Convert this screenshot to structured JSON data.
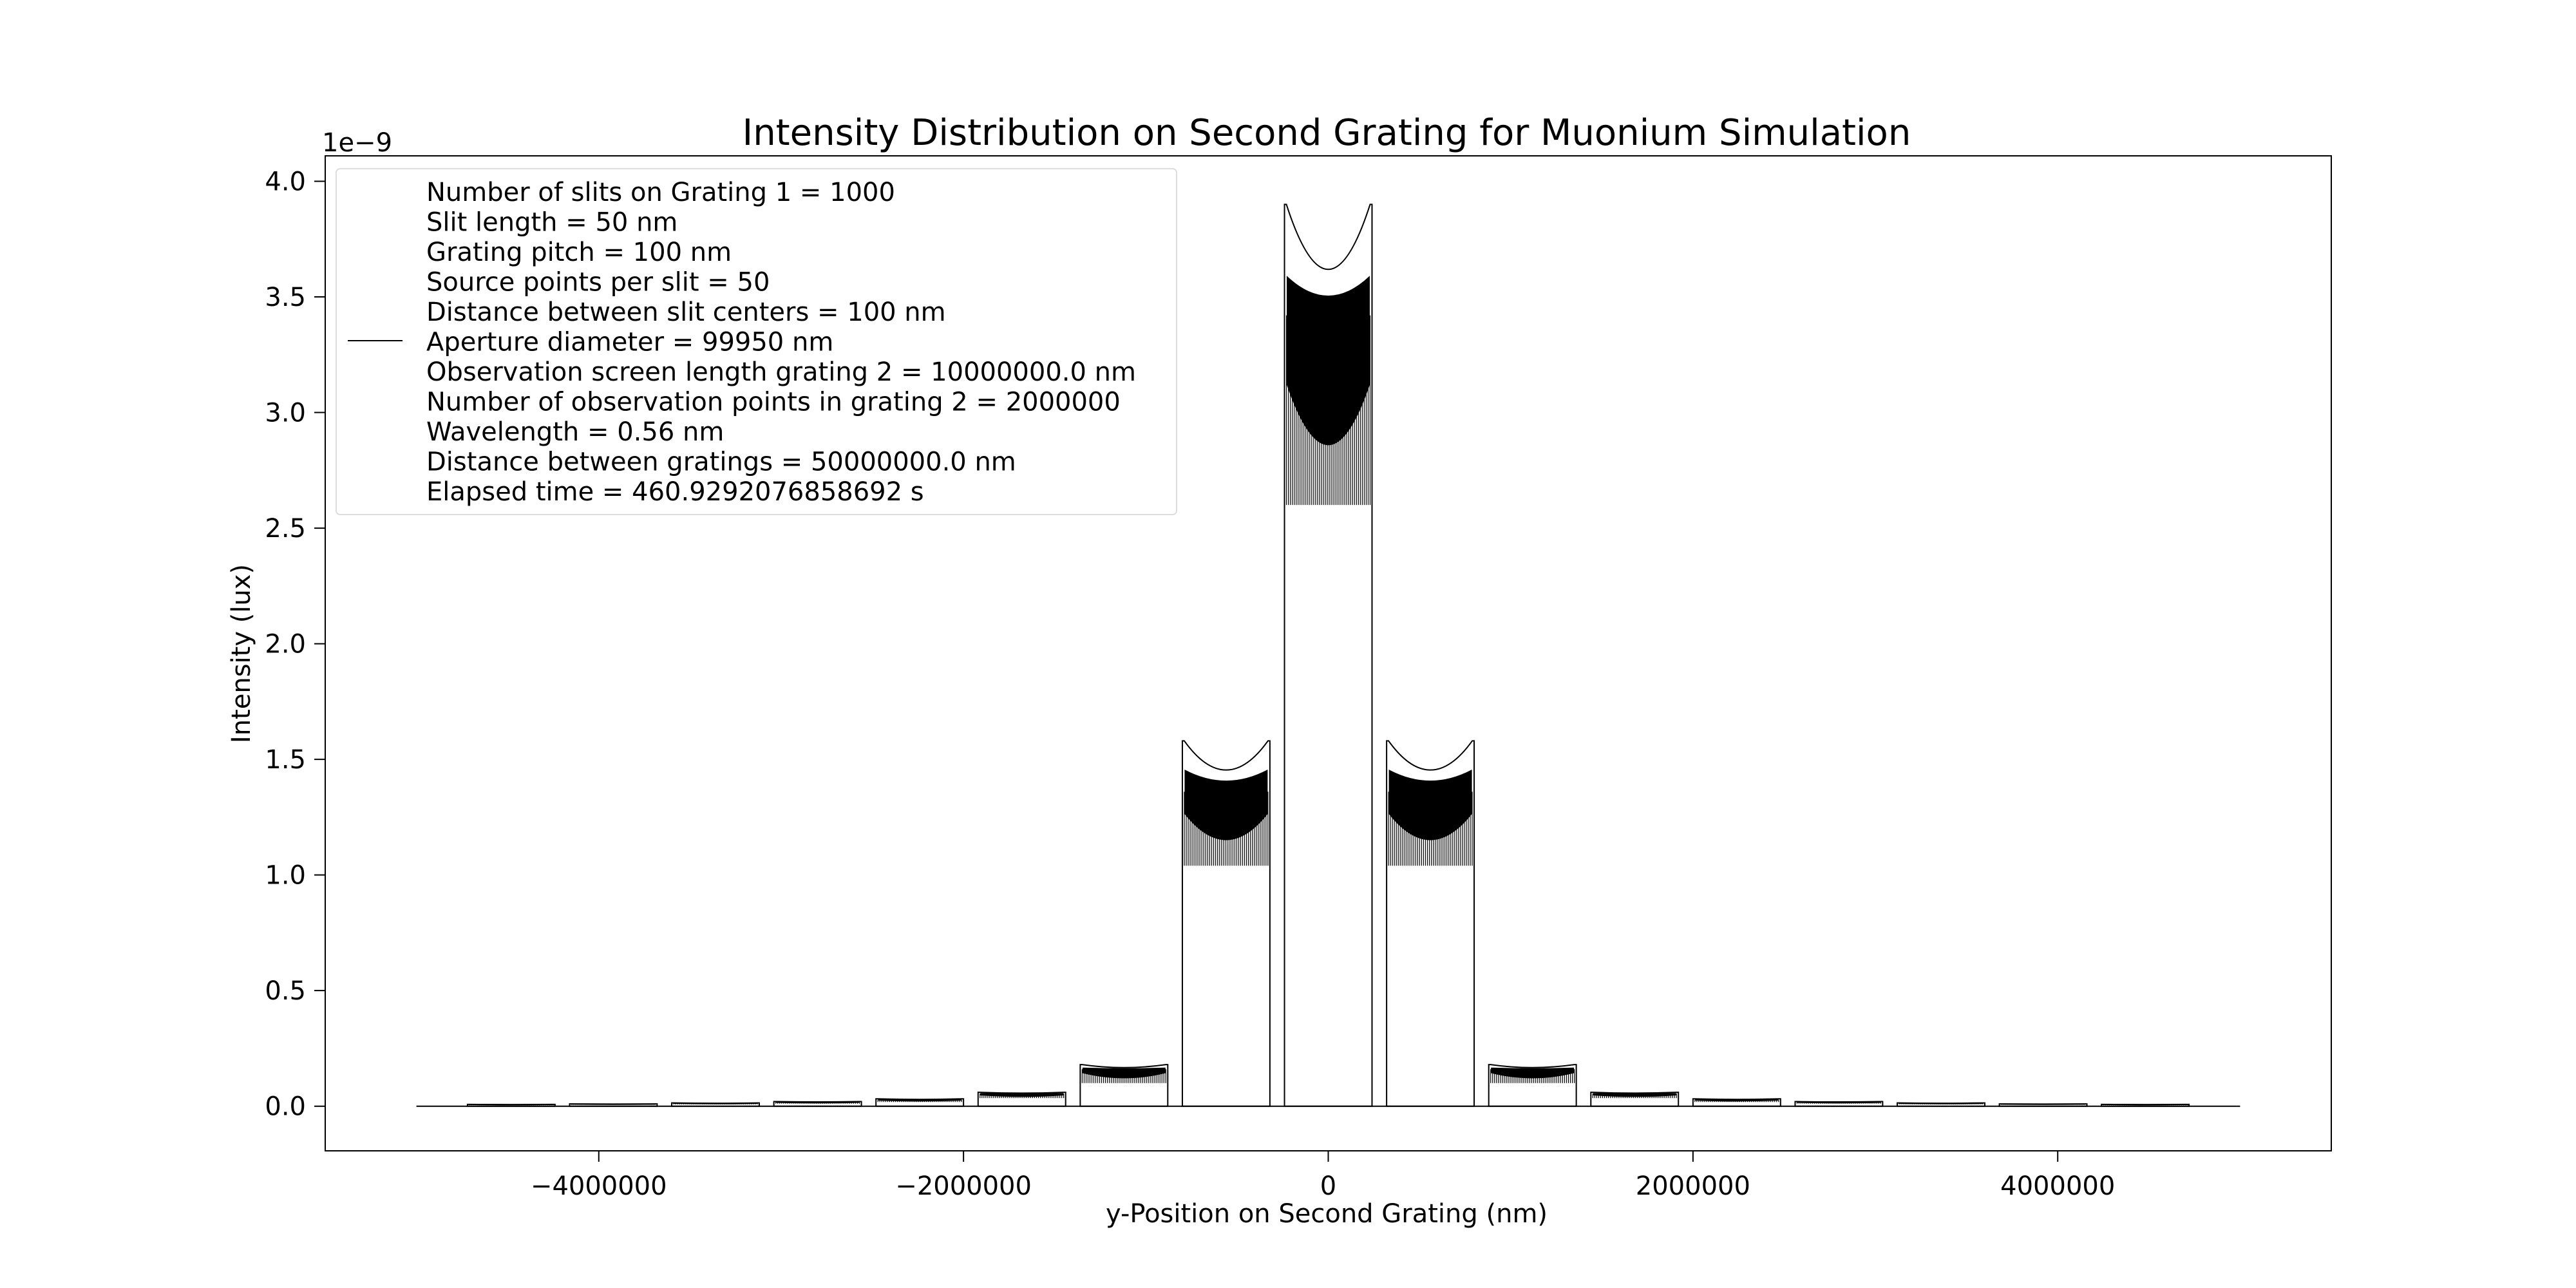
{
  "chart_data": {
    "type": "line",
    "title": "Intensity Distribution on Second Grating for Muonium Simulation",
    "xlabel": "y-Position on Second Grating (nm)",
    "ylabel": "Intensity (lux)",
    "y_offset_text": "1e−9",
    "xlim": [
      -5500000,
      5500000
    ],
    "ylim": [
      -1.93e-10,
      4.11e-09
    ],
    "x_ticks": [
      -4000000,
      -2000000,
      0,
      2000000,
      4000000
    ],
    "x_tick_labels": [
      "−4000000",
      "−2000000",
      "0",
      "2000000",
      "4000000"
    ],
    "y_ticks": [
      0.0,
      0.5,
      1.0,
      1.5,
      2.0,
      2.5,
      3.0,
      3.5,
      4.0
    ],
    "y_tick_labels": [
      "0.0",
      "0.5",
      "1.0",
      "1.5",
      "2.0",
      "2.5",
      "3.0",
      "3.5",
      "4.0"
    ],
    "y_tick_scale": 1e-09,
    "grid": false,
    "line_color": "#000000",
    "data_range_x": [
      -5000000,
      5000000
    ],
    "peaks": [
      {
        "x": 0,
        "height": 3.9e-09,
        "band_low": 2.6e-09,
        "band_high": 3.42e-09
      },
      {
        "x": -560000,
        "height": 1.58e-09,
        "band_low": 1.04e-09,
        "band_high": 1.36e-09
      },
      {
        "x": 560000,
        "height": 1.58e-09,
        "band_low": 1.04e-09,
        "band_high": 1.36e-09
      },
      {
        "x": -1120000,
        "height": 1.8e-10,
        "band_low": 1e-10,
        "band_high": 1.6e-10
      },
      {
        "x": 1120000,
        "height": 1.8e-10,
        "band_low": 1e-10,
        "band_high": 1.6e-10
      },
      {
        "x": -1680000,
        "height": 6e-11,
        "band_low": 3.5e-11,
        "band_high": 5.5e-11
      },
      {
        "x": 1680000,
        "height": 6e-11,
        "band_low": 3.5e-11,
        "band_high": 5.5e-11
      },
      {
        "x": -2240000,
        "height": 3.2e-11,
        "band_low": 1.8e-11,
        "band_high": 2.8e-11
      },
      {
        "x": 2240000,
        "height": 3.2e-11,
        "band_low": 1.8e-11,
        "band_high": 2.8e-11
      },
      {
        "x": -2800000,
        "height": 2e-11,
        "band_low": 1.1e-11,
        "band_high": 1.8e-11
      },
      {
        "x": 2800000,
        "height": 2e-11,
        "band_low": 1.1e-11,
        "band_high": 1.8e-11
      },
      {
        "x": -3360000,
        "height": 1.4e-11,
        "band_low": 8e-12,
        "band_high": 1.2e-11
      },
      {
        "x": 3360000,
        "height": 1.4e-11,
        "band_low": 8e-12,
        "band_high": 1.2e-11
      },
      {
        "x": -3920000,
        "height": 1e-11,
        "band_low": 6e-12,
        "band_high": 9e-12
      },
      {
        "x": 3920000,
        "height": 1e-11,
        "band_low": 6e-12,
        "band_high": 9e-12
      },
      {
        "x": -4480000,
        "height": 8e-12,
        "band_low": 4e-12,
        "band_high": 7e-12
      },
      {
        "x": 4480000,
        "height": 8e-12,
        "band_low": 4e-12,
        "band_high": 7e-12
      }
    ],
    "legend": {
      "placement": "upper-left",
      "line_color": "#000000",
      "entries": [
        "Number of slits on Grating 1 = 1000",
        "Slit length = 50 nm",
        "Grating pitch = 100 nm",
        "Source points per slit = 50",
        "Distance between slit centers = 100 nm",
        "Aperture diameter = 99950 nm",
        "Observation screen length grating 2 = 10000000.0 nm",
        "Number of observation points in grating 2 = 2000000",
        "Wavelength = 0.56 nm",
        "Distance between gratings = 50000000.0 nm",
        "Elapsed time = 460.9292076858692 s"
      ]
    }
  }
}
